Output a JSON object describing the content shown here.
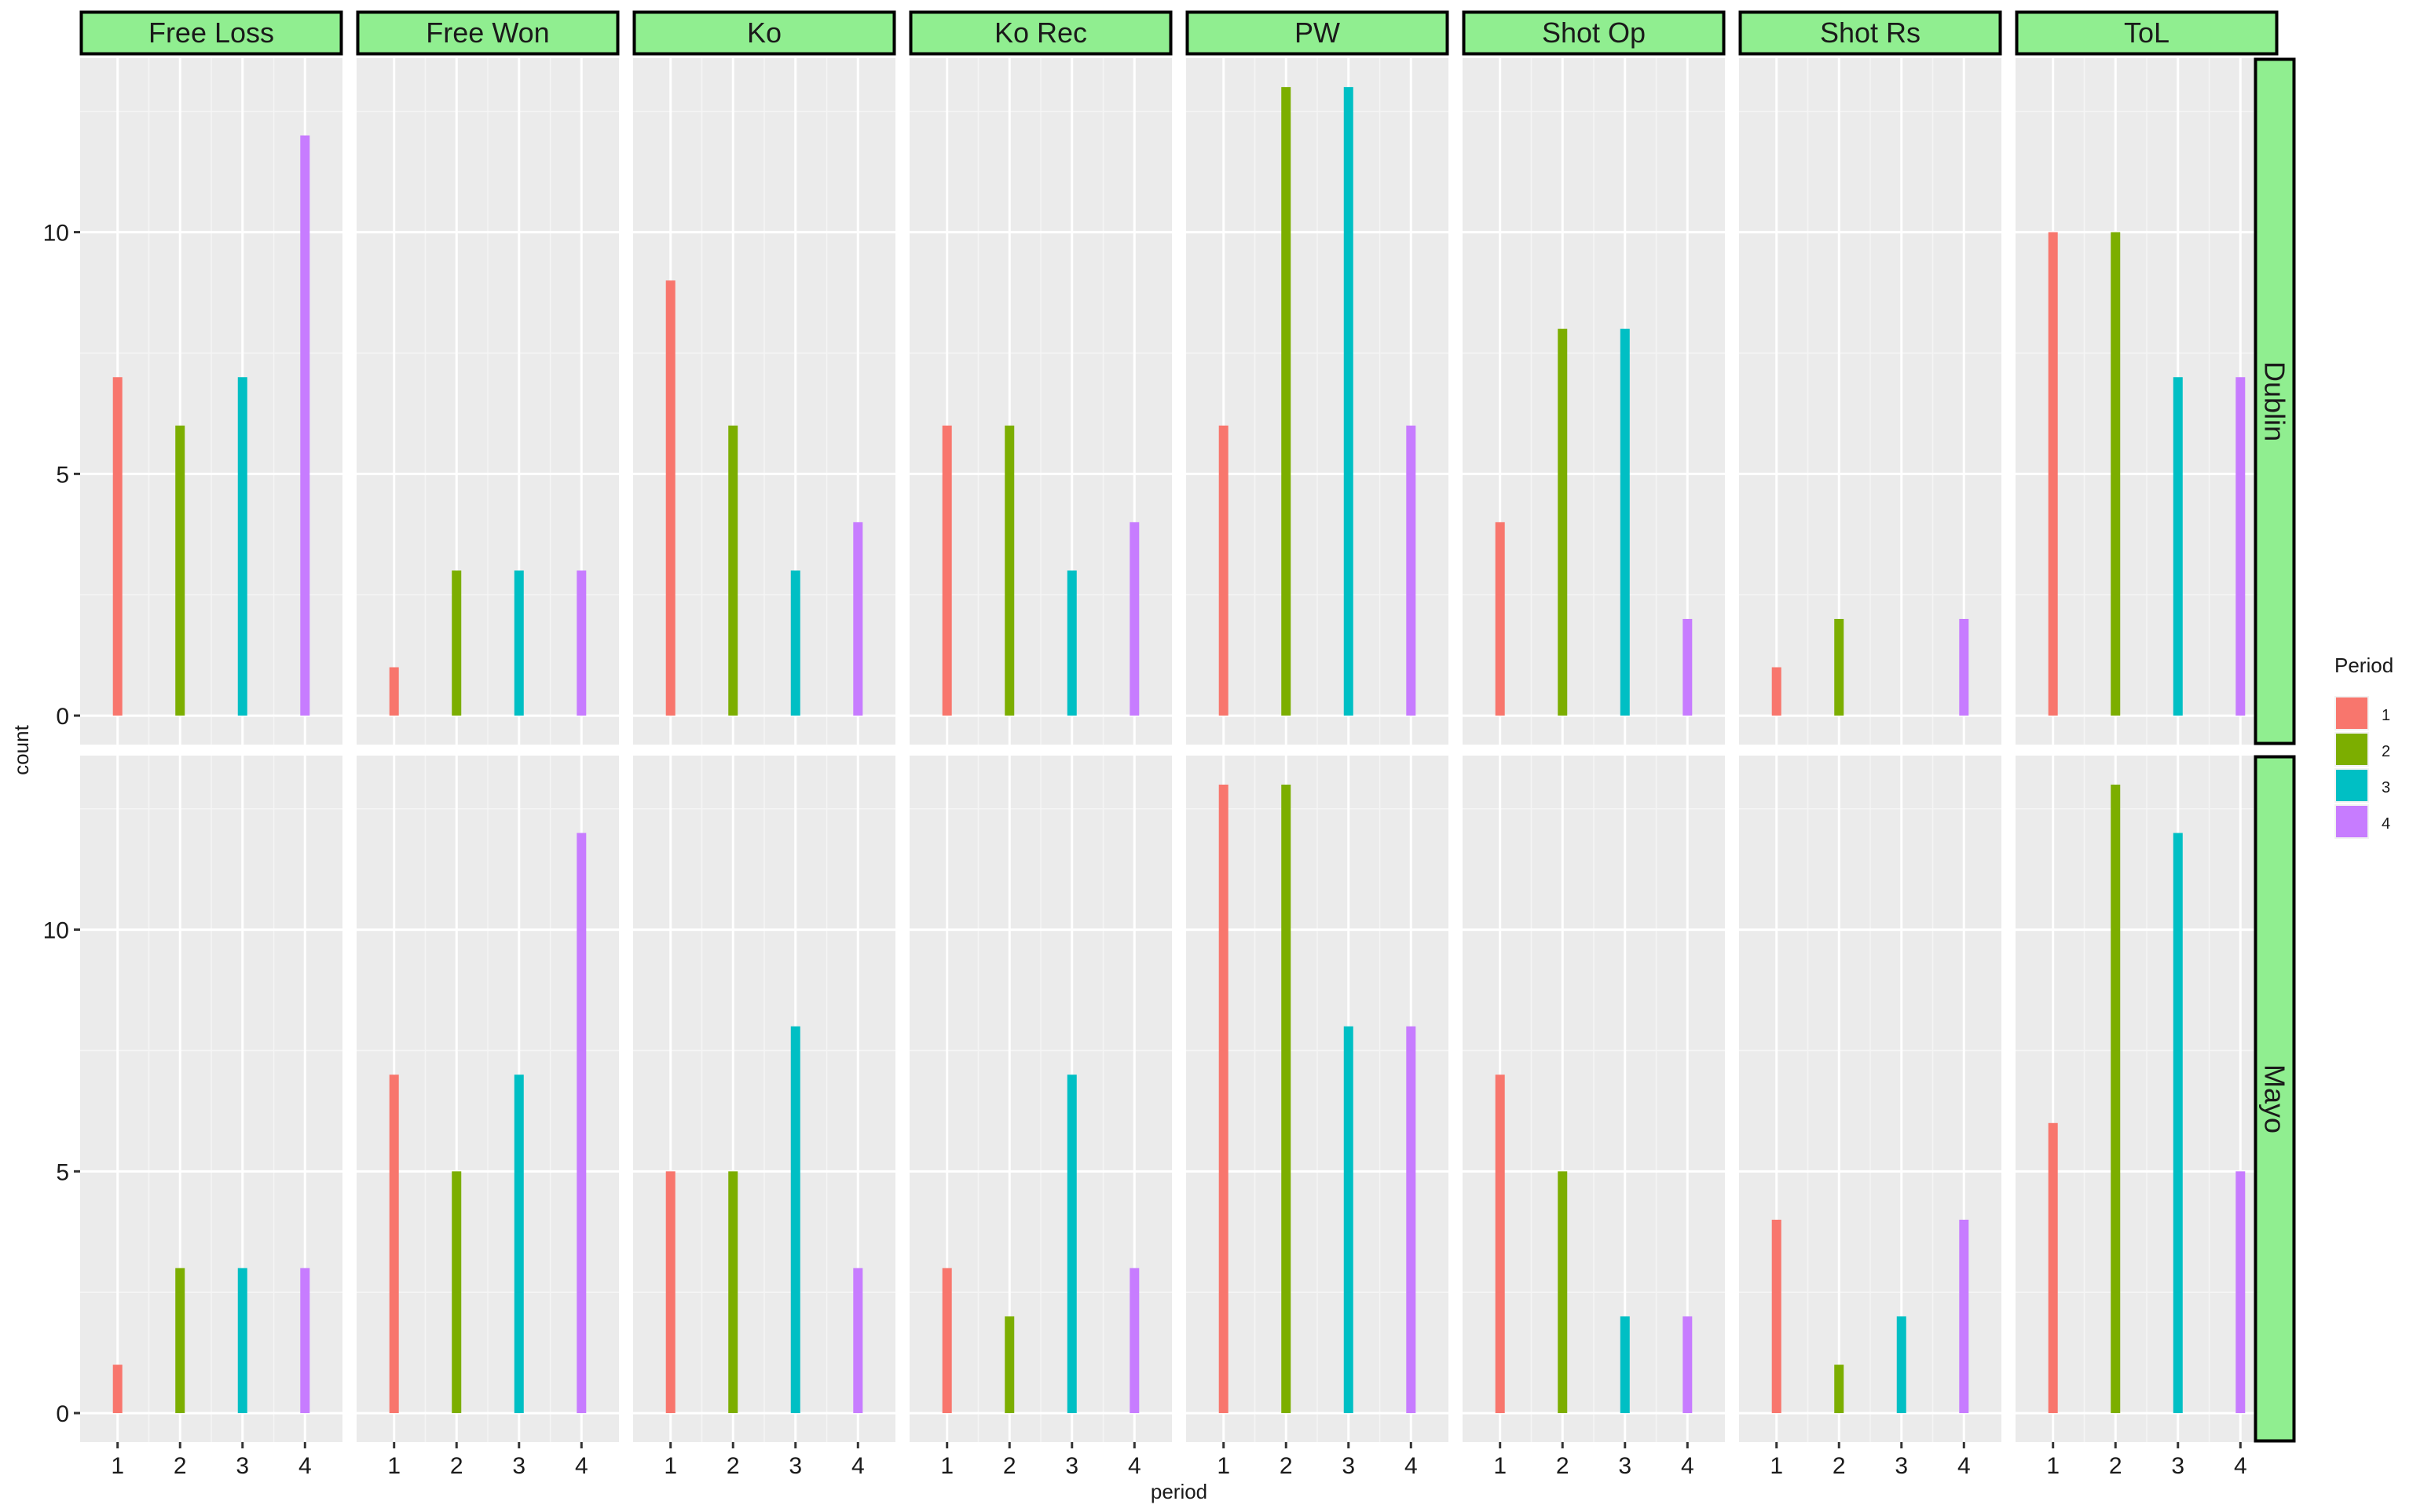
{
  "chart_data": {
    "type": "bar",
    "xlabel": "period",
    "ylabel": "count",
    "x_ticks": [
      "1",
      "2",
      "3",
      "4"
    ],
    "y_ticks": [
      0,
      5,
      10
    ],
    "ylim": [
      -0.6,
      13.6
    ],
    "grid": true,
    "legend": {
      "title": "Period",
      "placement": "right",
      "entries": [
        {
          "label": "1",
          "color": "#F8766D"
        },
        {
          "label": "2",
          "color": "#7CAE00"
        },
        {
          "label": "3",
          "color": "#00BFC4"
        },
        {
          "label": "4",
          "color": "#C77CFF"
        }
      ]
    },
    "facet_columns": [
      "Free Loss",
      "Free Won",
      "Ko",
      "Ko Rec",
      "PW",
      "Shot Op",
      "Shot Rs",
      "ToL"
    ],
    "facet_rows": [
      "Dublin",
      "Mayo"
    ],
    "values": {
      "Dublin": [
        [
          7,
          6,
          7,
          12
        ],
        [
          1,
          3,
          3,
          3
        ],
        [
          9,
          6,
          3,
          4
        ],
        [
          6,
          6,
          3,
          4
        ],
        [
          6,
          13,
          13,
          6
        ],
        [
          4,
          8,
          8,
          2
        ],
        [
          1,
          2,
          0,
          2
        ],
        [
          10,
          10,
          7,
          7
        ]
      ],
      "Mayo": [
        [
          1,
          3,
          3,
          3
        ],
        [
          7,
          5,
          7,
          12
        ],
        [
          5,
          5,
          8,
          3
        ],
        [
          3,
          2,
          7,
          3
        ],
        [
          13,
          13,
          8,
          8
        ],
        [
          7,
          5,
          2,
          2
        ],
        [
          4,
          1,
          2,
          4
        ],
        [
          6,
          13,
          12,
          5
        ]
      ]
    }
  }
}
